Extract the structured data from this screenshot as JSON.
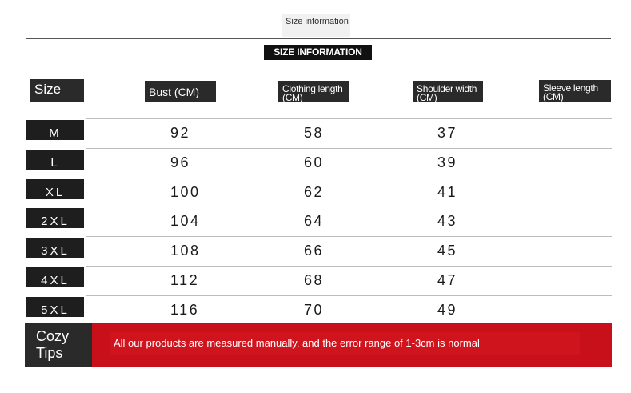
{
  "header": {
    "tag": "Size information",
    "banner": "SIZE INFORMATION"
  },
  "columns": {
    "size": "Size",
    "bust": "Bust (CM)",
    "clothing_length": "Clothing length (CM)",
    "shoulder_width": "Shoulder width (CM)",
    "sleeve_length": "Sleeve length (CM)"
  },
  "rows": [
    {
      "size": "M",
      "bust": "92",
      "clothing_length": "58",
      "shoulder_width": "37"
    },
    {
      "size": "L",
      "bust": "96",
      "clothing_length": "60",
      "shoulder_width": "39"
    },
    {
      "size": "XL",
      "bust": "100",
      "clothing_length": "62",
      "shoulder_width": "41"
    },
    {
      "size": "2XL",
      "bust": "104",
      "clothing_length": "64",
      "shoulder_width": "43"
    },
    {
      "size": "3XL",
      "bust": "108",
      "clothing_length": "66",
      "shoulder_width": "45"
    },
    {
      "size": "4XL",
      "bust": "112",
      "clothing_length": "68",
      "shoulder_width": "47"
    },
    {
      "size": "5XL",
      "bust": "116",
      "clothing_length": "70",
      "shoulder_width": "49"
    }
  ],
  "tips": {
    "title": "Cozy Tips",
    "text": "All our products are measured manually, and the error range of 1-3cm is normal"
  },
  "colors": {
    "dark": "#2a2a2a",
    "accent_red": "#c8101a"
  }
}
